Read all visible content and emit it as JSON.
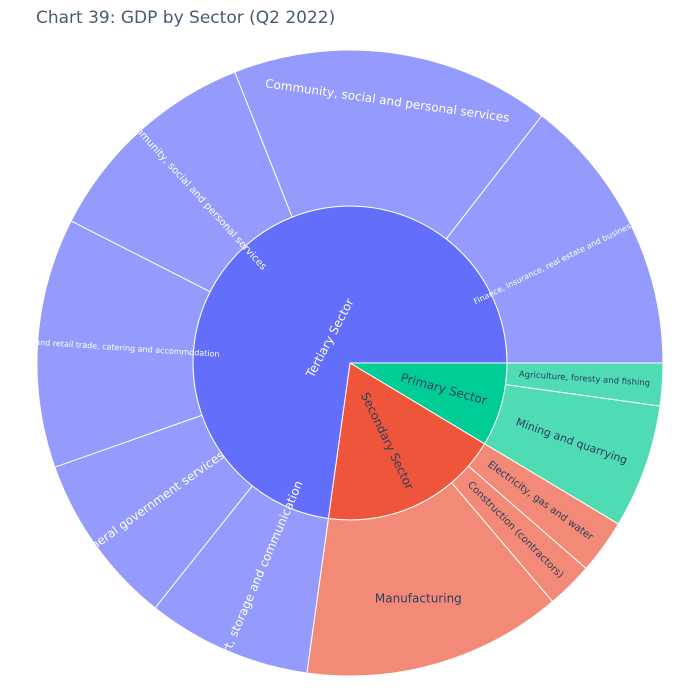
{
  "chart_data": {
    "type": "sunburst",
    "title": "Chart 39: GDP by Sector (Q2 2022)",
    "values_unit": "approximate share of total (%)",
    "sectors": [
      {
        "name": "Primary Sector",
        "color": "#00cc96",
        "child_color": "#4fdcb5",
        "children": [
          {
            "name": "Agriculture, foresty and fishing",
            "value": 2.2
          },
          {
            "name": "Mining and quarrying",
            "value": 6.4
          }
        ]
      },
      {
        "name": "Secondary Sector",
        "color": "#ef553b",
        "child_color": "#f38a77",
        "children": [
          {
            "name": "Electricity, gas and water",
            "value": 2.8
          },
          {
            "name": "Construction (contractors)",
            "value": 2.4
          },
          {
            "name": "Manufacturing",
            "value": 13.4
          }
        ]
      },
      {
        "name": "Tertiary Sector",
        "color": "#636efa",
        "child_color": "#949bfc",
        "children": [
          {
            "name": "Transport, storage and communication",
            "value": 8.5
          },
          {
            "name": "General government services",
            "value": 8.9
          },
          {
            "name": "Wholesale and retail trade, catering and accommodation",
            "value": 12.9
          },
          {
            "name": "Other community, social and personal services",
            "value": 11.5
          },
          {
            "name": "Community, social and personal services",
            "value": 16.5
          },
          {
            "name": "Finance, insurance, real estate and business services",
            "value": 14.5
          }
        ]
      }
    ]
  }
}
